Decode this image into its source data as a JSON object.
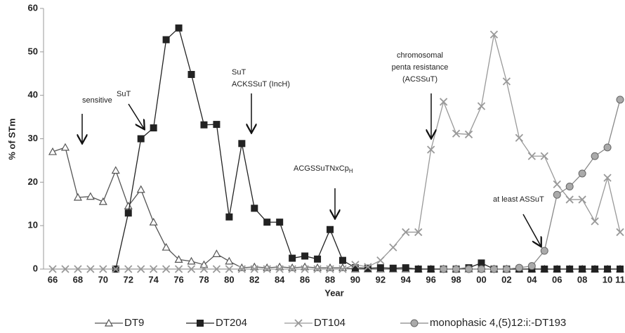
{
  "chart_data": {
    "type": "line",
    "y_label": "% of STm",
    "x_label": "Year",
    "categories": [
      "66",
      null,
      "68",
      null,
      "70",
      null,
      "72",
      null,
      "74",
      null,
      "76",
      null,
      "78",
      null,
      "80",
      null,
      "82",
      null,
      "84",
      null,
      "86",
      null,
      "88",
      null,
      "90",
      null,
      "92",
      null,
      "94",
      null,
      "96",
      null,
      "98",
      null,
      "00",
      null,
      "02",
      null,
      "04",
      null,
      "06",
      null,
      "08",
      null,
      "10",
      "11"
    ],
    "ylim": [
      0,
      60
    ],
    "yticks": [
      0,
      10,
      20,
      30,
      40,
      50,
      60
    ],
    "grid": false,
    "legend": "bottom",
    "series": [
      {
        "name": "DT9",
        "color": "#555555",
        "marker": "triangle",
        "values": [
          27,
          28,
          16.5,
          16.7,
          15.5,
          22.7,
          14.5,
          18.3,
          10.8,
          5,
          2.2,
          1.8,
          1,
          3.5,
          1.8,
          0.3,
          0.5,
          0.3,
          0.5,
          0.3,
          0.5,
          0.3,
          0.3,
          0.3,
          0,
          0,
          0,
          0,
          0,
          0,
          0,
          0,
          0,
          0,
          0,
          0,
          0,
          0,
          0,
          0,
          0,
          0,
          0,
          0,
          0,
          0
        ]
      },
      {
        "name": "DT204",
        "color": "#222222",
        "marker": "square",
        "values": [
          null,
          null,
          null,
          null,
          null,
          0,
          12.9,
          30,
          32.5,
          52.8,
          55.5,
          44.8,
          33.2,
          33.3,
          12,
          28.9,
          14,
          10.8,
          10.8,
          2.5,
          3,
          2.3,
          9.1,
          2,
          0.3,
          0.2,
          0.3,
          0.2,
          0.3,
          0,
          0,
          0,
          0,
          0.3,
          1.4,
          0,
          0,
          0,
          0,
          0,
          0,
          0,
          0,
          0,
          0,
          0
        ]
      },
      {
        "name": "DT104",
        "color": "#999999",
        "marker": "x",
        "values": [
          0,
          0,
          0,
          0,
          0,
          0,
          0,
          0,
          0,
          0,
          0,
          0,
          0,
          0,
          0,
          0,
          0,
          0,
          0,
          0,
          0,
          0,
          0,
          0,
          1,
          0.5,
          2,
          5,
          8.5,
          8.5,
          27.5,
          38.5,
          31.2,
          31,
          37.5,
          54,
          43.2,
          30.2,
          26,
          26,
          19.5,
          16,
          16,
          11,
          21,
          8.5
        ]
      },
      {
        "name": "monophasic 4,(5)12:i:-DT193",
        "color": "#888888",
        "marker": "circle",
        "values": [
          null,
          null,
          null,
          null,
          null,
          null,
          null,
          null,
          null,
          null,
          null,
          null,
          null,
          null,
          null,
          null,
          null,
          null,
          null,
          null,
          null,
          null,
          null,
          null,
          null,
          null,
          null,
          null,
          null,
          null,
          null,
          0,
          0,
          0,
          0,
          0,
          0,
          0.3,
          0.7,
          4.2,
          17.1,
          19,
          22,
          26,
          28,
          39
        ]
      }
    ],
    "annotations": [
      {
        "lines": [
          "sensitive"
        ]
      },
      {
        "lines": [
          "SuT"
        ]
      },
      {
        "lines": [
          "SuT",
          "ACKSSuT (IncH)"
        ]
      },
      {
        "lines": [
          "ACGSSuTNxCp"
        ],
        "sub": "H"
      },
      {
        "lines": [
          "chromosomal",
          "penta resistance",
          "(ACSSuT)"
        ]
      },
      {
        "lines": [
          "at least ASSuT"
        ]
      }
    ]
  }
}
